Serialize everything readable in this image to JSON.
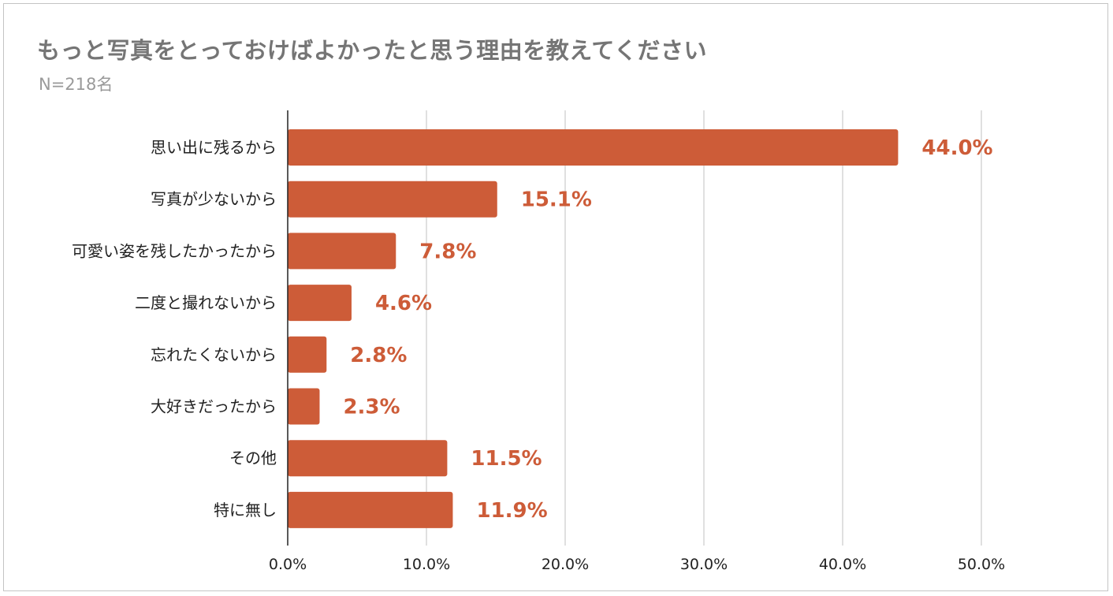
{
  "chart_data": {
    "type": "bar",
    "orientation": "horizontal",
    "title": "もっと写真をとっておけばよかったと思う理由を教えてください",
    "subtitle": "N=218名",
    "categories": [
      "思い出に残るから",
      "写真が少ないから",
      "可愛い姿を残したかったから",
      "二度と撮れないから",
      "忘れたくないから",
      "大好きだったから",
      "その他",
      "特に無し"
    ],
    "values": [
      44.0,
      15.1,
      7.8,
      4.6,
      2.8,
      2.3,
      11.5,
      11.9
    ],
    "value_labels": [
      "44.0%",
      "15.1%",
      "7.8%",
      "4.6%",
      "2.8%",
      "2.3%",
      "11.5%",
      "11.9%"
    ],
    "x_ticks": [
      0,
      10,
      20,
      30,
      40,
      50
    ],
    "x_tick_labels": [
      "0.0%",
      "10.0%",
      "20.0%",
      "30.0%",
      "40.0%",
      "50.0%"
    ],
    "xlim": [
      0,
      50
    ],
    "grid": true,
    "legend": "none",
    "bar_color": "#cd5c38",
    "label_color": "#cd5c38"
  }
}
